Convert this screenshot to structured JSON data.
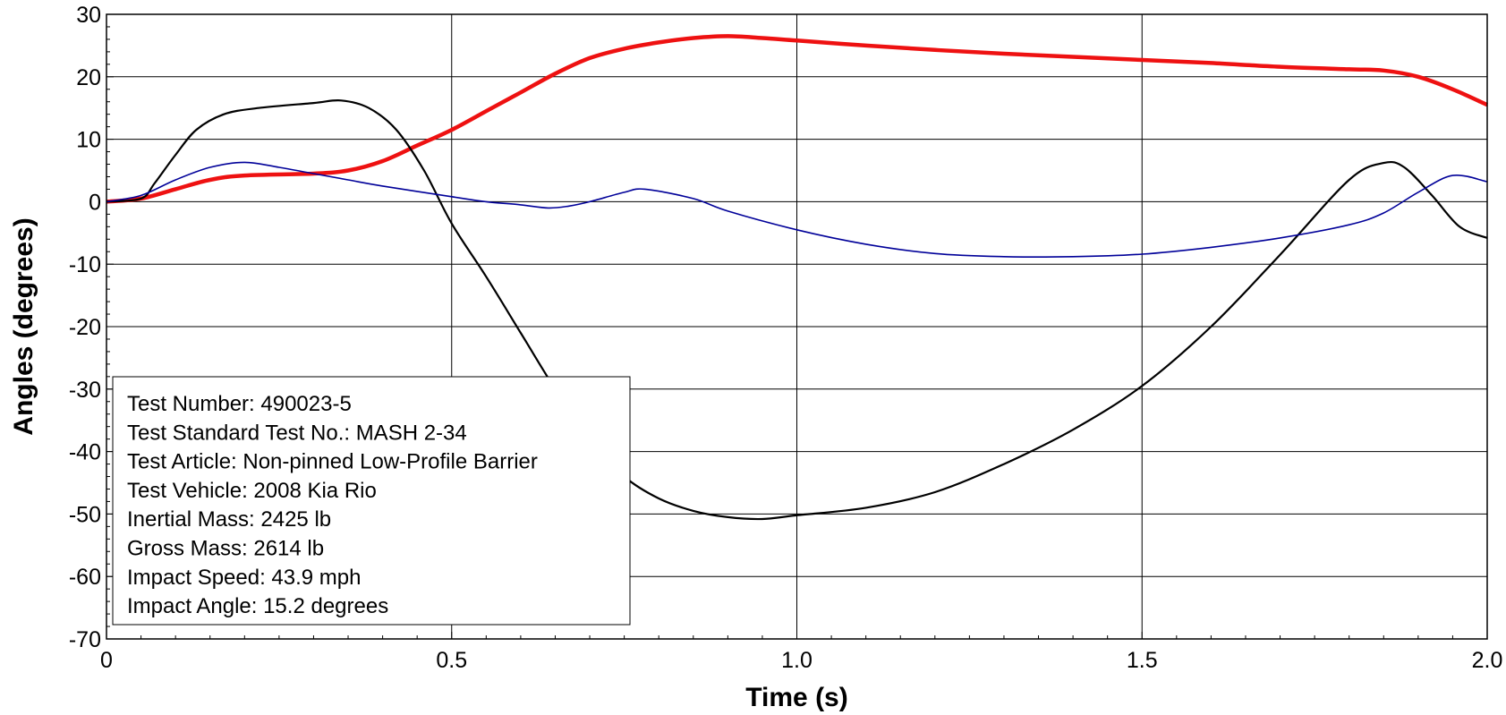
{
  "chart_data": {
    "type": "line",
    "xlabel": "Time (s)",
    "ylabel": "Angles (degrees)",
    "xlim": [
      0,
      2.0
    ],
    "ylim": [
      -70,
      30
    ],
    "x_ticks": [
      0,
      0.5,
      1.0,
      1.5,
      2.0
    ],
    "x_tick_labels": [
      "0",
      "0.5",
      "1.0",
      "1.5",
      "2.0"
    ],
    "y_ticks": [
      30,
      20,
      10,
      0,
      -10,
      -20,
      -30,
      -40,
      -50,
      -60,
      -70
    ],
    "y_tick_labels": [
      "30",
      "20",
      "10",
      "0",
      "-10",
      "-20",
      "-30",
      "-40",
      "-50",
      "-60",
      "-70"
    ],
    "grid": true,
    "colors": {
      "series_1": "#ee1111",
      "series_2": "#000000",
      "series_3": "#000099"
    },
    "series": [
      {
        "x": [
          0,
          0.05,
          0.1,
          0.15,
          0.2,
          0.3,
          0.35,
          0.4,
          0.45,
          0.5,
          0.55,
          0.6,
          0.65,
          0.7,
          0.75,
          0.8,
          0.85,
          0.9,
          0.95,
          1.0,
          1.1,
          1.2,
          1.3,
          1.4,
          1.5,
          1.6,
          1.7,
          1.8,
          1.85,
          1.9,
          1.95,
          2.0
        ],
        "values": [
          0,
          0.5,
          2,
          3.5,
          4.2,
          4.5,
          5,
          6.5,
          9,
          11.5,
          14.5,
          17.5,
          20.5,
          23,
          24.5,
          25.5,
          26.2,
          26.5,
          26.2,
          25.8,
          25,
          24.3,
          23.7,
          23.2,
          22.7,
          22.2,
          21.6,
          21.2,
          21,
          20,
          18,
          15.5
        ]
      },
      {
        "x": [
          0,
          0.05,
          0.07,
          0.1,
          0.13,
          0.17,
          0.22,
          0.3,
          0.34,
          0.38,
          0.42,
          0.46,
          0.5,
          0.55,
          0.6,
          0.65,
          0.7,
          0.75,
          0.8,
          0.85,
          0.9,
          0.95,
          1.0,
          1.1,
          1.2,
          1.3,
          1.4,
          1.5,
          1.6,
          1.7,
          1.8,
          1.85,
          1.88,
          1.92,
          1.96,
          2.0
        ],
        "values": [
          0,
          0.5,
          3,
          7.5,
          11.5,
          14,
          15,
          15.8,
          16.2,
          15,
          11.5,
          5,
          -3.5,
          -12,
          -21,
          -30,
          -38,
          -44,
          -47.5,
          -49.5,
          -50.5,
          -50.8,
          -50.2,
          -49,
          -46.5,
          -42,
          -36.5,
          -29.5,
          -20,
          -8.5,
          3.5,
          6.2,
          5.5,
          1,
          -4,
          -5.8
        ]
      },
      {
        "x": [
          0,
          0.05,
          0.1,
          0.15,
          0.2,
          0.25,
          0.3,
          0.35,
          0.4,
          0.5,
          0.55,
          0.6,
          0.64,
          0.67,
          0.7,
          0.75,
          0.78,
          0.85,
          0.9,
          1.0,
          1.1,
          1.2,
          1.3,
          1.4,
          1.5,
          1.6,
          1.7,
          1.8,
          1.85,
          1.9,
          1.95,
          2.0
        ],
        "values": [
          0,
          1,
          3.5,
          5.5,
          6.3,
          5.5,
          4.5,
          3.5,
          2.5,
          0.8,
          0,
          -0.5,
          -1,
          -0.7,
          0,
          1.5,
          2,
          0.5,
          -1.5,
          -4.5,
          -6.8,
          -8.3,
          -8.8,
          -8.8,
          -8.4,
          -7.3,
          -5.8,
          -3.7,
          -1.8,
          1.5,
          4.2,
          3.2
        ]
      }
    ],
    "annotations": [
      "Test Number: 490023-5",
      "Test Standard Test No.: MASH 2-34",
      "Test Article: Non-pinned Low-Profile Barrier",
      "Test Vehicle: 2008 Kia Rio",
      "Inertial Mass: 2425 lb",
      "Gross Mass: 2614 lb",
      "Impact Speed: 43.9 mph",
      "Impact Angle: 15.2 degrees"
    ]
  }
}
